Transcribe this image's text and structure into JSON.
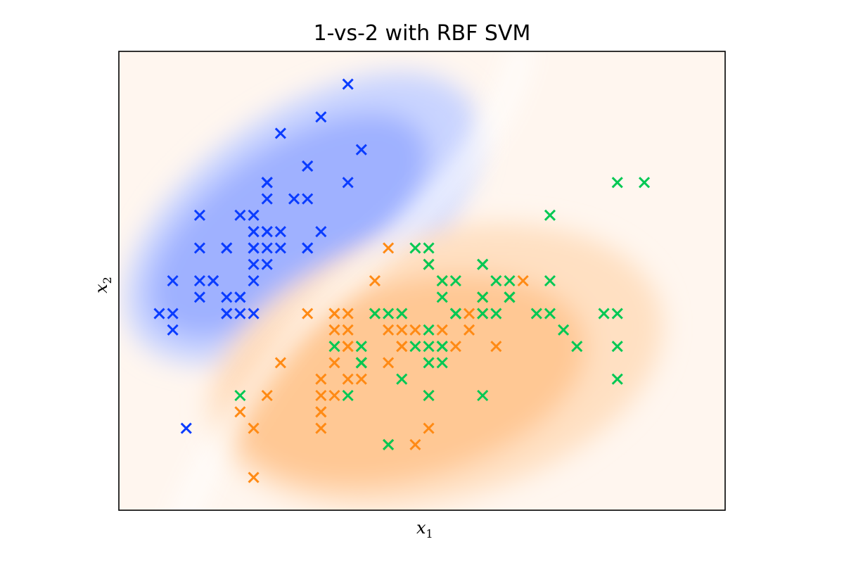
{
  "chart_data": {
    "type": "scatter",
    "title": "1-vs-2 with RBF SVM",
    "xlabel": "x",
    "xlabel_sub": "1",
    "ylabel": "x",
    "ylabel_sub": "2",
    "xlim": [
      4.0,
      8.5
    ],
    "ylim": [
      1.8,
      4.6
    ],
    "xticks": [],
    "yticks": [],
    "grid": false,
    "marker": "x",
    "background": {
      "type": "decision_function",
      "colors": {
        "positive": "#0a3cff",
        "negative": "#ff8a14",
        "boundary": "#ffffff"
      }
    },
    "series": [
      {
        "color": "#0a3cff",
        "points": [
          [
            5.1,
            3.5
          ],
          [
            4.9,
            3.0
          ],
          [
            4.7,
            3.2
          ],
          [
            4.6,
            3.1
          ],
          [
            5.0,
            3.6
          ],
          [
            5.4,
            3.9
          ],
          [
            4.6,
            3.4
          ],
          [
            5.0,
            3.4
          ],
          [
            4.4,
            2.9
          ],
          [
            4.9,
            3.1
          ],
          [
            5.4,
            3.7
          ],
          [
            4.8,
            3.4
          ],
          [
            4.8,
            3.0
          ],
          [
            4.3,
            3.0
          ],
          [
            5.8,
            4.0
          ],
          [
            5.7,
            4.4
          ],
          [
            5.4,
            3.9
          ],
          [
            5.1,
            3.5
          ],
          [
            5.7,
            3.8
          ],
          [
            5.1,
            3.8
          ],
          [
            5.4,
            3.4
          ],
          [
            5.1,
            3.7
          ],
          [
            4.6,
            3.6
          ],
          [
            5.1,
            3.3
          ],
          [
            4.8,
            3.4
          ],
          [
            5.0,
            3.0
          ],
          [
            5.0,
            3.4
          ],
          [
            5.2,
            3.5
          ],
          [
            5.2,
            3.4
          ],
          [
            4.7,
            3.2
          ],
          [
            4.8,
            3.1
          ],
          [
            5.4,
            3.4
          ],
          [
            5.2,
            4.1
          ],
          [
            5.5,
            4.2
          ],
          [
            4.9,
            3.1
          ],
          [
            5.0,
            3.2
          ],
          [
            5.5,
            3.5
          ],
          [
            4.9,
            3.6
          ],
          [
            4.4,
            3.0
          ],
          [
            5.1,
            3.4
          ],
          [
            5.0,
            3.5
          ],
          [
            4.5,
            2.3
          ],
          [
            4.4,
            3.2
          ],
          [
            5.0,
            3.5
          ],
          [
            5.1,
            3.8
          ],
          [
            4.8,
            3.0
          ],
          [
            5.1,
            3.8
          ],
          [
            4.6,
            3.2
          ],
          [
            5.3,
            3.7
          ],
          [
            5.0,
            3.3
          ]
        ]
      },
      {
        "color": "#ff8a14",
        "points": [
          [
            7.0,
            3.2
          ],
          [
            6.4,
            3.2
          ],
          [
            6.9,
            3.1
          ],
          [
            5.5,
            2.3
          ],
          [
            6.5,
            2.8
          ],
          [
            5.7,
            2.8
          ],
          [
            6.3,
            3.3
          ],
          [
            4.9,
            2.4
          ],
          [
            6.6,
            2.9
          ],
          [
            5.2,
            2.7
          ],
          [
            5.0,
            2.0
          ],
          [
            5.9,
            3.0
          ],
          [
            6.0,
            2.2
          ],
          [
            6.1,
            2.9
          ],
          [
            5.6,
            2.9
          ],
          [
            6.7,
            3.1
          ],
          [
            5.6,
            3.0
          ],
          [
            5.8,
            2.7
          ],
          [
            6.2,
            2.2
          ],
          [
            5.6,
            2.5
          ],
          [
            5.9,
            3.2
          ],
          [
            6.1,
            2.8
          ],
          [
            6.3,
            2.5
          ],
          [
            6.1,
            2.8
          ],
          [
            6.4,
            2.9
          ],
          [
            6.6,
            3.0
          ],
          [
            6.8,
            2.8
          ],
          [
            6.7,
            3.0
          ],
          [
            6.0,
            2.9
          ],
          [
            5.7,
            2.6
          ],
          [
            5.5,
            2.4
          ],
          [
            5.5,
            2.4
          ],
          [
            5.8,
            2.7
          ],
          [
            6.0,
            2.7
          ],
          [
            5.4,
            3.0
          ],
          [
            6.0,
            3.4
          ],
          [
            6.7,
            3.1
          ],
          [
            6.3,
            2.3
          ],
          [
            5.6,
            3.0
          ],
          [
            5.5,
            2.5
          ],
          [
            5.5,
            2.6
          ],
          [
            6.1,
            3.0
          ],
          [
            5.8,
            2.6
          ],
          [
            5.0,
            2.3
          ],
          [
            5.6,
            2.7
          ],
          [
            5.7,
            3.0
          ],
          [
            5.7,
            2.9
          ],
          [
            6.2,
            2.9
          ],
          [
            5.1,
            2.5
          ],
          [
            5.7,
            2.8
          ]
        ]
      },
      {
        "color": "#00c853",
        "points": [
          [
            6.3,
            3.3
          ],
          [
            5.8,
            2.7
          ],
          [
            7.1,
            3.0
          ],
          [
            6.3,
            2.9
          ],
          [
            6.5,
            3.0
          ],
          [
            7.6,
            3.0
          ],
          [
            4.9,
            2.5
          ],
          [
            7.3,
            2.9
          ],
          [
            6.7,
            2.5
          ],
          [
            7.2,
            3.6
          ],
          [
            6.5,
            3.2
          ],
          [
            6.4,
            2.7
          ],
          [
            6.8,
            3.0
          ],
          [
            5.7,
            2.5
          ],
          [
            5.8,
            2.8
          ],
          [
            6.4,
            3.2
          ],
          [
            6.5,
            3.0
          ],
          [
            7.7,
            3.8
          ],
          [
            7.7,
            2.6
          ],
          [
            6.0,
            2.2
          ],
          [
            6.9,
            3.2
          ],
          [
            5.6,
            2.8
          ],
          [
            7.7,
            2.8
          ],
          [
            6.3,
            2.7
          ],
          [
            6.7,
            3.3
          ],
          [
            7.2,
            3.2
          ],
          [
            6.2,
            2.8
          ],
          [
            6.1,
            3.0
          ],
          [
            6.4,
            2.8
          ],
          [
            7.2,
            3.0
          ],
          [
            7.4,
            2.8
          ],
          [
            7.9,
            3.8
          ],
          [
            6.4,
            2.8
          ],
          [
            6.3,
            2.8
          ],
          [
            6.1,
            2.6
          ],
          [
            7.7,
            3.0
          ],
          [
            6.3,
            3.4
          ],
          [
            6.4,
            3.1
          ],
          [
            6.0,
            3.0
          ],
          [
            6.9,
            3.1
          ],
          [
            6.7,
            3.1
          ],
          [
            6.9,
            3.1
          ],
          [
            5.8,
            2.7
          ],
          [
            6.8,
            3.2
          ],
          [
            6.7,
            3.3
          ],
          [
            6.7,
            3.0
          ],
          [
            6.3,
            2.5
          ],
          [
            6.5,
            3.0
          ],
          [
            6.2,
            3.4
          ],
          [
            5.9,
            3.0
          ]
        ]
      }
    ]
  }
}
